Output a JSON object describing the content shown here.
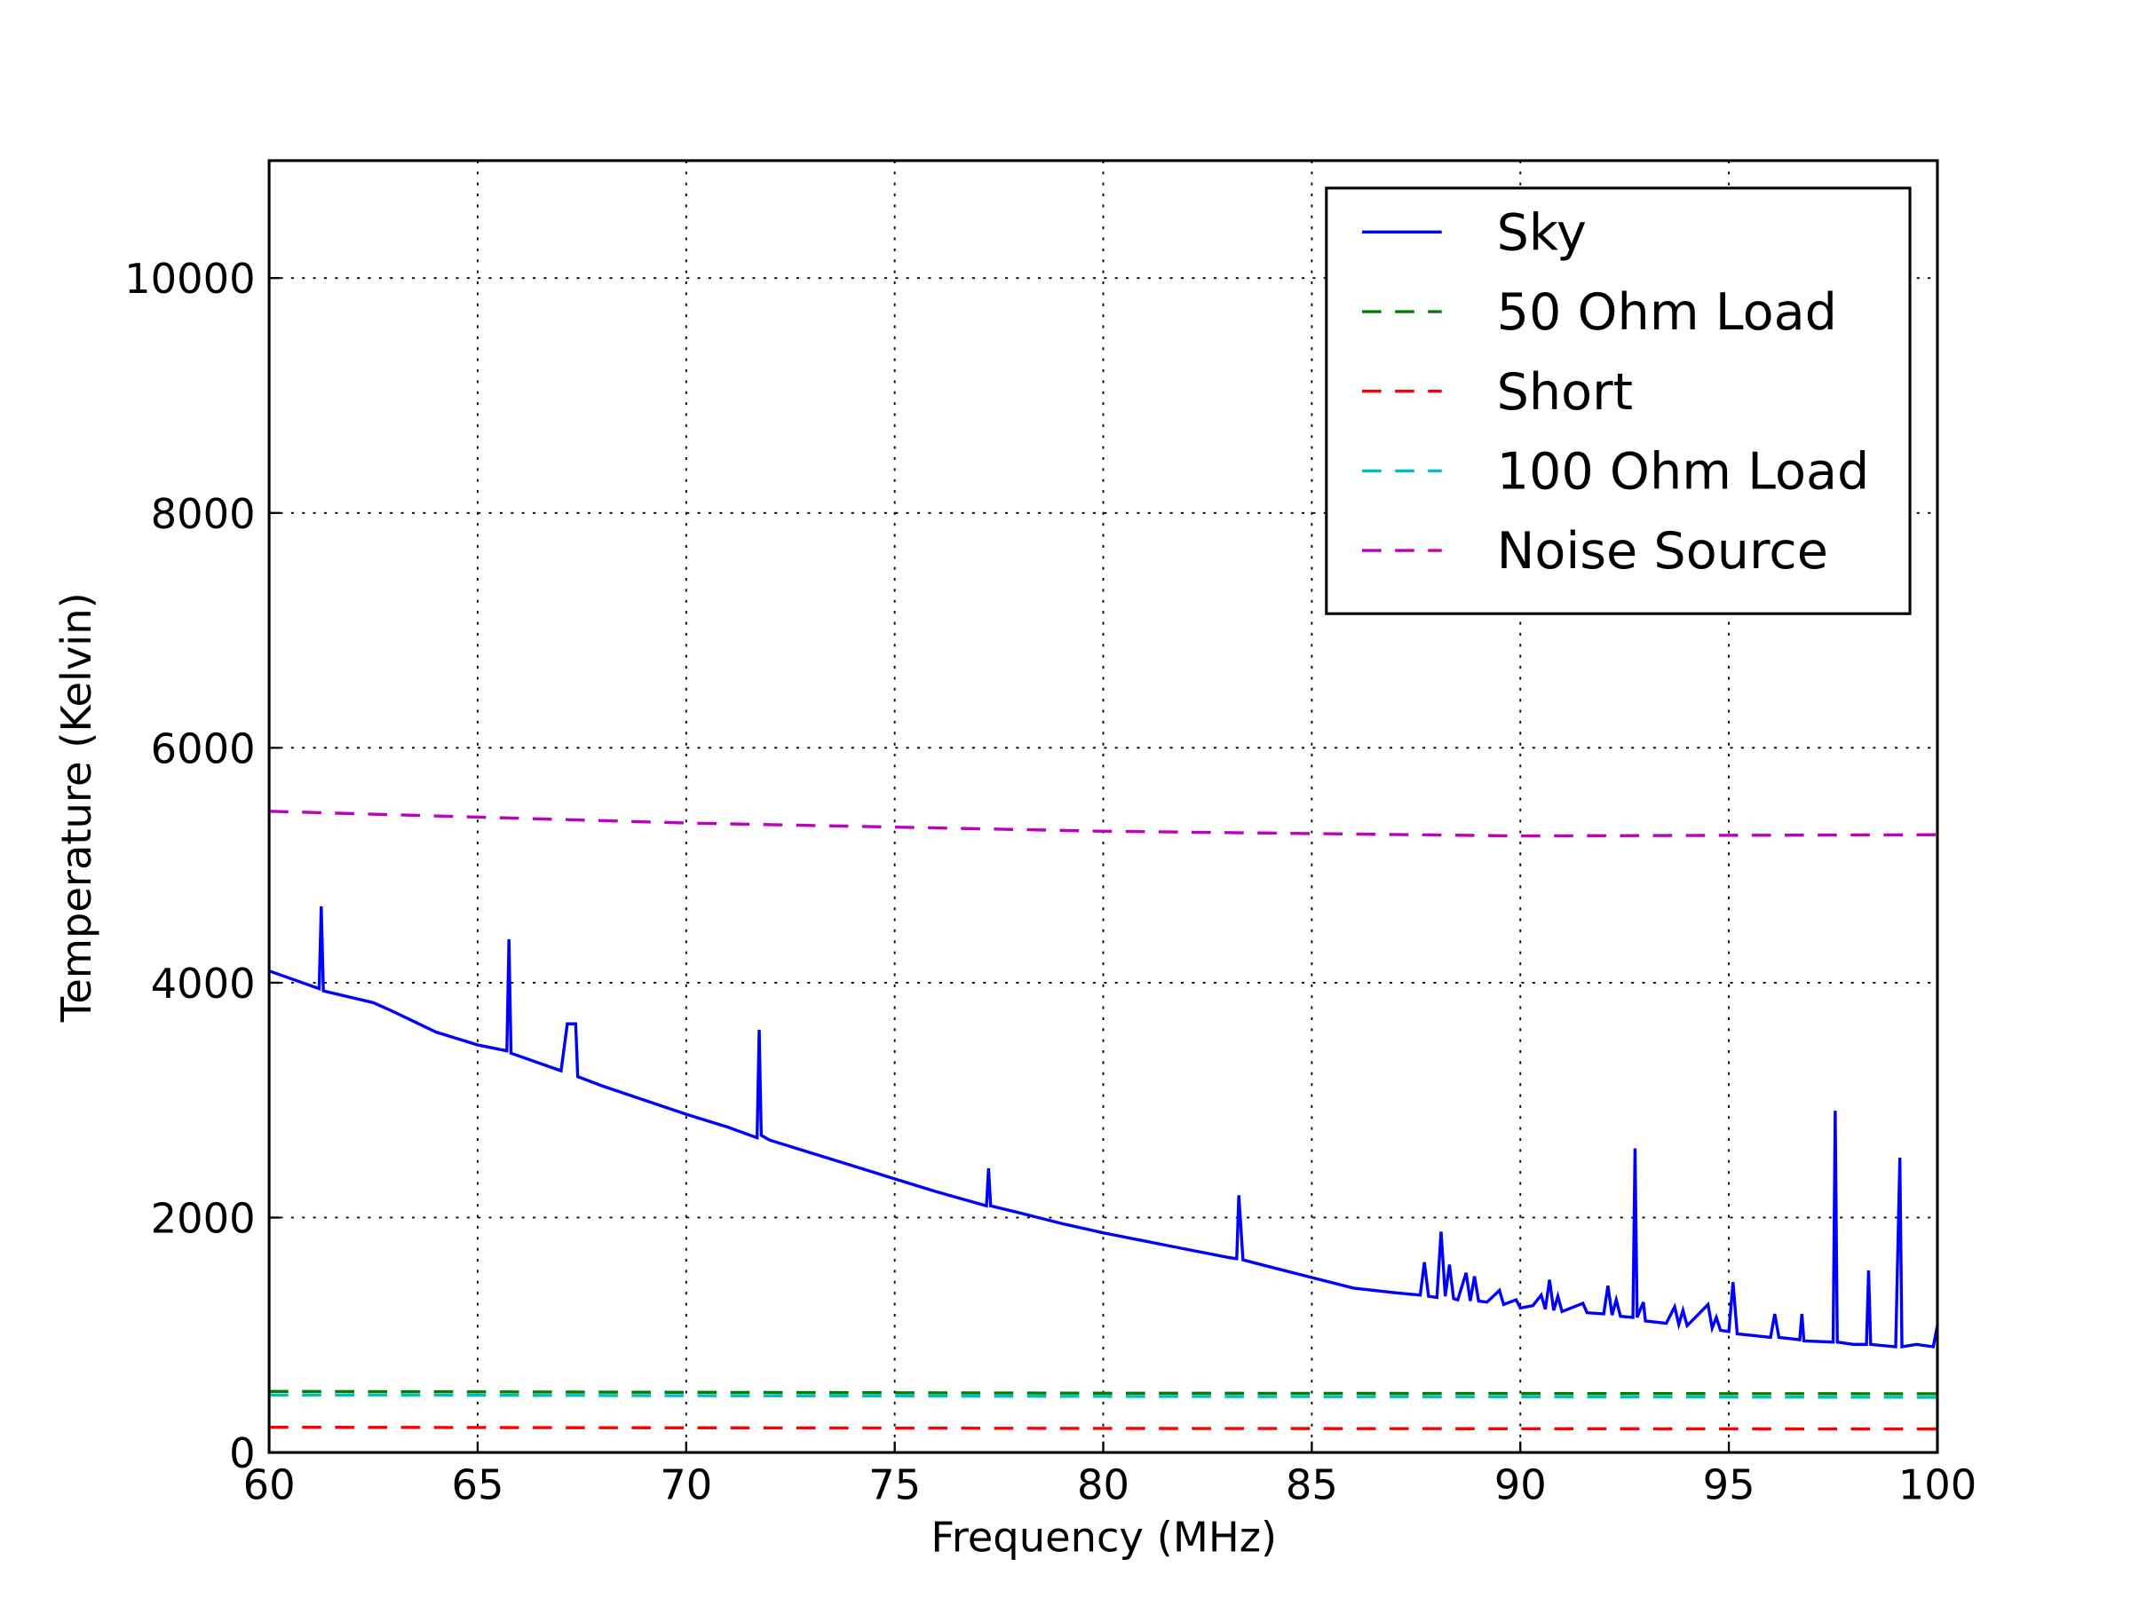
{
  "chart_data": {
    "type": "line",
    "x_label": "Frequency (MHz)",
    "y_label": "Temperature (Kelvin)",
    "xlim": [
      60,
      100
    ],
    "ylim": [
      0,
      11000
    ],
    "xticks": [
      60,
      65,
      70,
      75,
      80,
      85,
      90,
      95,
      100
    ],
    "yticks": [
      0,
      2000,
      4000,
      6000,
      8000,
      10000
    ],
    "grid": true,
    "legend": "upper right",
    "series": [
      {
        "name": "Sky",
        "color": "#0000ff",
        "linestyle": "solid",
        "x": [
          60,
          61.2,
          61.25,
          61.3,
          62.5,
          63,
          64,
          65,
          65.7,
          65.75,
          65.8,
          67,
          67.15,
          67.35,
          67.4,
          68,
          69,
          70,
          71,
          71.7,
          71.75,
          71.8,
          72,
          73,
          74,
          75,
          76,
          77.2,
          77.25,
          77.3,
          78,
          79,
          80,
          81,
          82,
          83,
          83.2,
          83.25,
          83.35,
          84,
          85,
          86,
          87,
          87.6,
          87.7,
          87.8,
          88,
          88.1,
          88.2,
          88.3,
          88.4,
          88.5,
          88.7,
          88.8,
          88.9,
          89.0,
          89.2,
          89.5,
          89.6,
          89.9,
          90.0,
          90.3,
          90.5,
          90.6,
          90.7,
          90.8,
          90.9,
          91.0,
          91.5,
          91.6,
          92.0,
          92.1,
          92.2,
          92.3,
          92.4,
          92.7,
          92.75,
          92.8,
          92.95,
          93.0,
          93.5,
          93.7,
          93.8,
          93.9,
          94.0,
          94.5,
          94.6,
          94.7,
          94.8,
          95.0,
          95.1,
          95.2,
          96,
          96.1,
          96.2,
          96.7,
          96.75,
          96.8,
          97.5,
          97.55,
          97.6,
          98,
          98.3,
          98.35,
          98.4,
          99.0,
          99.1,
          99.15,
          99.5,
          99.9,
          100
        ],
        "values": [
          4100,
          3950,
          4650,
          3930,
          3830,
          3750,
          3580,
          3470,
          3420,
          4370,
          3400,
          3250,
          3650,
          3650,
          3200,
          3120,
          3000,
          2880,
          2770,
          2680,
          3600,
          2700,
          2660,
          2550,
          2440,
          2330,
          2220,
          2100,
          2420,
          2100,
          2040,
          1950,
          1870,
          1800,
          1730,
          1660,
          1650,
          2190,
          1640,
          1580,
          1490,
          1400,
          1360,
          1340,
          1620,
          1330,
          1320,
          1880,
          1330,
          1600,
          1310,
          1300,
          1530,
          1290,
          1500,
          1290,
          1280,
          1380,
          1260,
          1300,
          1230,
          1250,
          1340,
          1220,
          1470,
          1210,
          1330,
          1200,
          1270,
          1190,
          1180,
          1420,
          1170,
          1300,
          1160,
          1150,
          2590,
          1150,
          1280,
          1120,
          1100,
          1240,
          1090,
          1210,
          1080,
          1260,
          1060,
          1150,
          1040,
          1030,
          1450,
          1010,
          980,
          1180,
          980,
          960,
          1180,
          950,
          940,
          2910,
          940,
          920,
          920,
          1550,
          920,
          900,
          2510,
          900,
          920,
          900,
          1080
        ]
      },
      {
        "name": "50 Ohm Load",
        "color": "#008000",
        "linestyle": "dashed",
        "x": [
          60,
          80,
          100
        ],
        "values": [
          520,
          505,
          500
        ]
      },
      {
        "name": "Short",
        "color": "#ff0000",
        "linestyle": "dashed",
        "x": [
          60,
          80,
          100
        ],
        "values": [
          215,
          205,
          200
        ]
      },
      {
        "name": "100 Ohm Load",
        "color": "#00bfbf",
        "linestyle": "dashed",
        "x": [
          60,
          80,
          100
        ],
        "values": [
          490,
          478,
          470
        ]
      },
      {
        "name": "Noise Source",
        "color": "#bf00bf",
        "linestyle": "dashed",
        "x": [
          60,
          70,
          80,
          90,
          100
        ],
        "values": [
          5460,
          5360,
          5290,
          5250,
          5260
        ]
      }
    ]
  }
}
